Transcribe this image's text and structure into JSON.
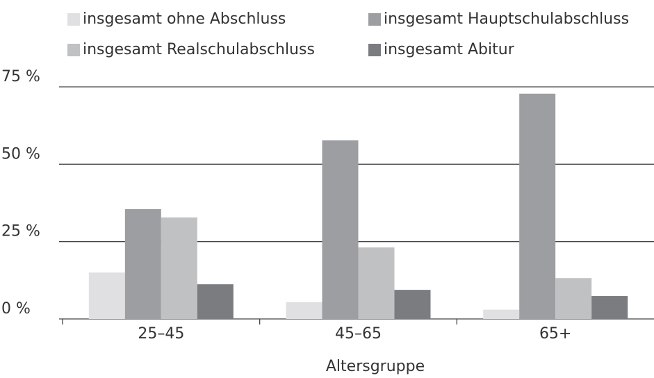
{
  "chart_data": {
    "type": "bar",
    "x_label": "Altersgruppe",
    "categories": [
      "25–45",
      "45–65",
      "65+"
    ],
    "series": [
      {
        "name": "insgesamt ohne Abschluss",
        "color": "#e0e0e2",
        "values": [
          15,
          5.4,
          3
        ]
      },
      {
        "name": "insgesamt Hauptschulabschluss",
        "color": "#9d9ea2",
        "values": [
          35.5,
          57.7,
          72.8
        ]
      },
      {
        "name": "insgesamt Realschulabschluss",
        "color": "#c0c1c3",
        "values": [
          32.8,
          23.1,
          13.2
        ]
      },
      {
        "name": "insgesamt Abitur",
        "color": "#7b7c80",
        "values": [
          11.2,
          9.4,
          7.4
        ]
      }
    ],
    "ylim": [
      0,
      75
    ],
    "yticks": [
      {
        "value": 0,
        "label": "0 %"
      },
      {
        "value": 25,
        "label": "25 %"
      },
      {
        "value": 50,
        "label": "50 %"
      },
      {
        "value": 75,
        "label": "75 %"
      }
    ],
    "grid": true
  }
}
